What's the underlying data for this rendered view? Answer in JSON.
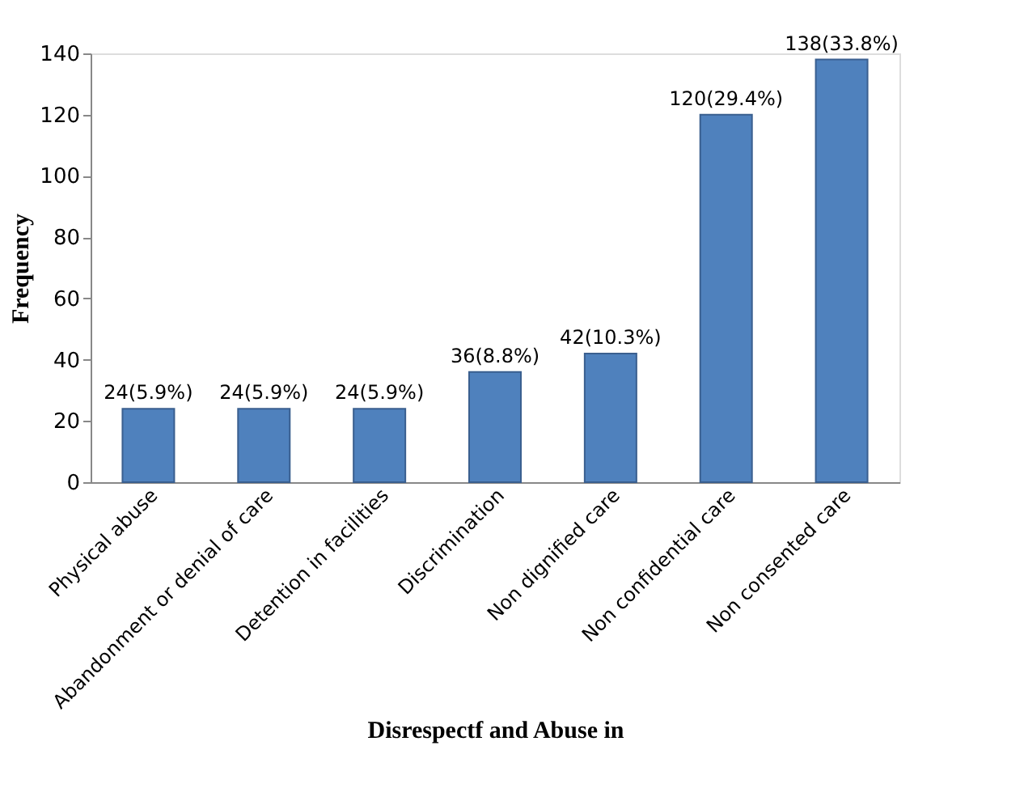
{
  "chart_data": {
    "type": "bar",
    "xlabel": "Disrespectf and Abuse in",
    "ylabel": "Frequency",
    "categories": [
      "Physical abuse",
      "Abandonment or denial of care",
      "Detention in facilities",
      "Discrimination",
      "Non dignified care",
      "Non confidential care",
      "Non consented care"
    ],
    "values": [
      24,
      24,
      24,
      36,
      42,
      120,
      138
    ],
    "value_labels": [
      "24(5.9%)",
      "24(5.9%)",
      "24(5.9%)",
      "36(8.8%)",
      "42(10.3%)",
      "120(29.4%)",
      "138(33.8%)"
    ],
    "color": "#4f81bd",
    "ylim": [
      0,
      140
    ],
    "yticks": [
      0,
      20,
      40,
      60,
      80,
      100,
      120,
      140
    ],
    "grid": false
  }
}
